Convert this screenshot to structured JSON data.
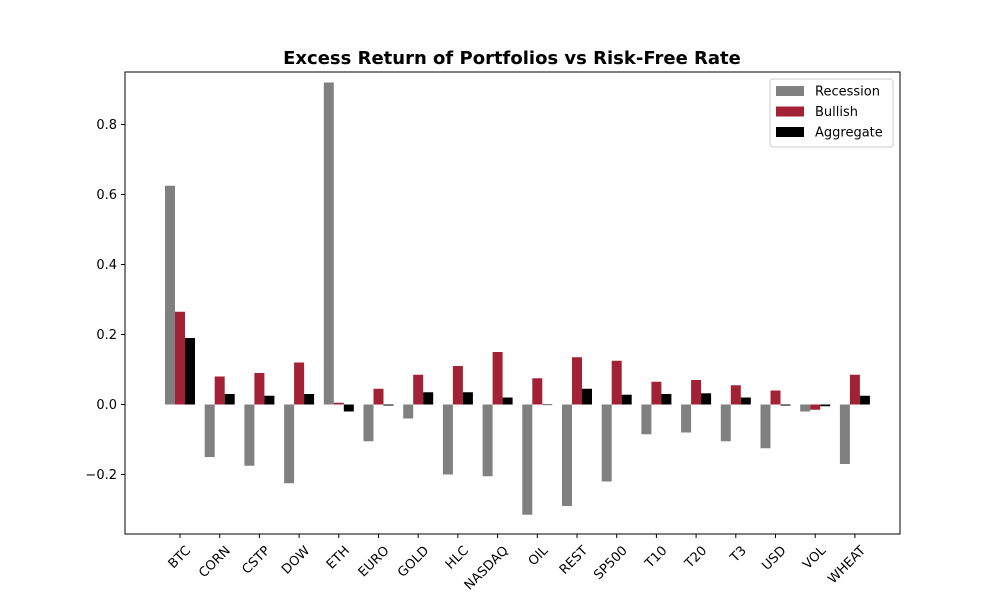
{
  "chart_data": {
    "type": "bar",
    "title": "Excess Return of Portfolios vs Risk-Free Rate",
    "xlabel": "",
    "ylabel": "",
    "categories": [
      "BTC",
      "CORN",
      "CSTP",
      "DOW",
      "ETH",
      "EURO",
      "GOLD",
      "HLC",
      "NASDAQ",
      "OIL",
      "REST",
      "SP500",
      "T10",
      "T20",
      "T3",
      "USD",
      "VOL",
      "WHEAT"
    ],
    "series": [
      {
        "name": "Recession",
        "color": "#808080",
        "values": [
          0.625,
          -0.15,
          -0.175,
          -0.225,
          0.92,
          -0.105,
          -0.04,
          -0.2,
          -0.205,
          -0.315,
          -0.29,
          -0.22,
          -0.085,
          -0.08,
          -0.105,
          -0.125,
          -0.02,
          -0.17
        ]
      },
      {
        "name": "Bullish",
        "color": "#a32134",
        "values": [
          0.265,
          0.08,
          0.09,
          0.12,
          0.005,
          0.045,
          0.085,
          0.11,
          0.15,
          0.075,
          0.135,
          0.125,
          0.065,
          0.07,
          0.055,
          0.04,
          -0.015,
          0.085
        ]
      },
      {
        "name": "Aggregate",
        "color": "#000000",
        "values": [
          0.19,
          0.03,
          0.025,
          0.03,
          -0.02,
          -0.003,
          0.035,
          0.035,
          0.02,
          0.0,
          0.045,
          0.028,
          0.03,
          0.032,
          0.02,
          -0.003,
          -0.005,
          0.025
        ]
      }
    ],
    "ylim": [
      -0.37,
      0.95
    ],
    "yticks": [
      -0.2,
      0.0,
      0.2,
      0.4,
      0.6,
      0.8
    ],
    "ytick_labels": [
      "−0.2",
      "0.0",
      "0.2",
      "0.4",
      "0.6",
      "0.8"
    ],
    "legend_position": "top-right",
    "grid": false
  }
}
